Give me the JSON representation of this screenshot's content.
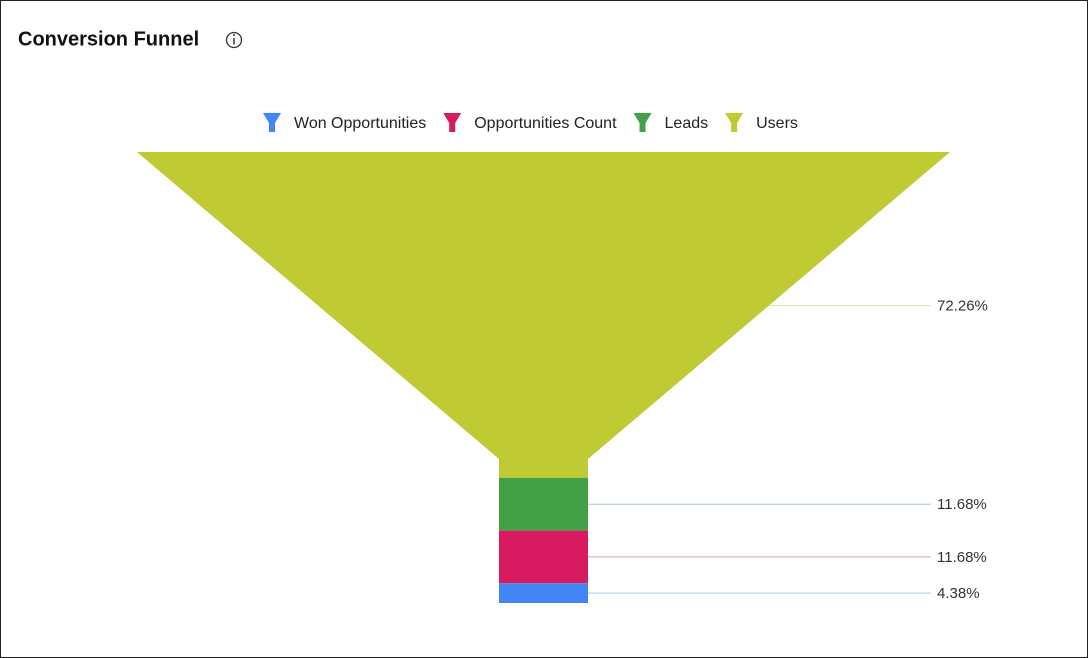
{
  "chart_data": {
    "type": "funnel",
    "title": "Conversion Funnel",
    "categories": [
      "Users",
      "Leads",
      "Opportunities Count",
      "Won Opportunities"
    ],
    "values": [
      72.26,
      11.68,
      11.68,
      4.38
    ],
    "value_labels": [
      "72.26%",
      "11.68%",
      "11.68%",
      "4.38%"
    ],
    "colors": [
      "#c0ca33",
      "#43a047",
      "#d81b60",
      "#4285f4"
    ],
    "legend": "top"
  }
}
